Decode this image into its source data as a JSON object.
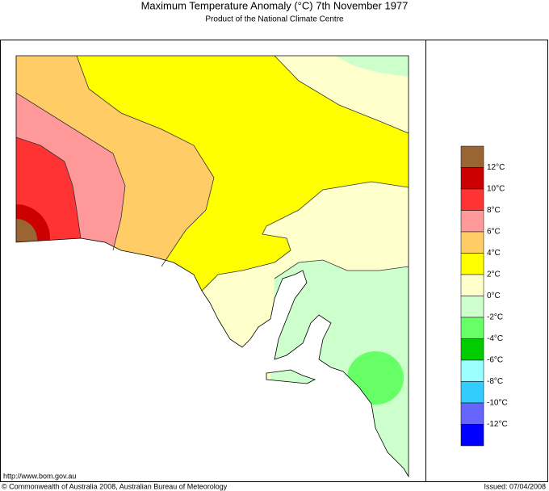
{
  "header": {
    "title": "Maximum Temperature Anomaly (°C)  7th November 1977",
    "subtitle": "Product of the National Climate Centre"
  },
  "legend": {
    "colors": [
      "#996633",
      "#cc0000",
      "#ff3333",
      "#ff9999",
      "#ffcc66",
      "#ffff00",
      "#ffffcc",
      "#ccffcc",
      "#66ff66",
      "#00cc00",
      "#99ffff",
      "#33ccff",
      "#6666ff",
      "#0000ff"
    ],
    "labels": [
      "12°C",
      "10°C",
      "8°C",
      "6°C",
      "4°C",
      "2°C",
      "0°C",
      "-2°C",
      "-4°C",
      "-6°C",
      "-8°C",
      "-10°C",
      "-12°C"
    ]
  },
  "footer": {
    "url": "http://www.bom.gov.au",
    "copyright": "© Commonwealth of Australia 2008, Australian Bureau of Meteorology",
    "issued": "Issued: 07/04/2008"
  }
}
